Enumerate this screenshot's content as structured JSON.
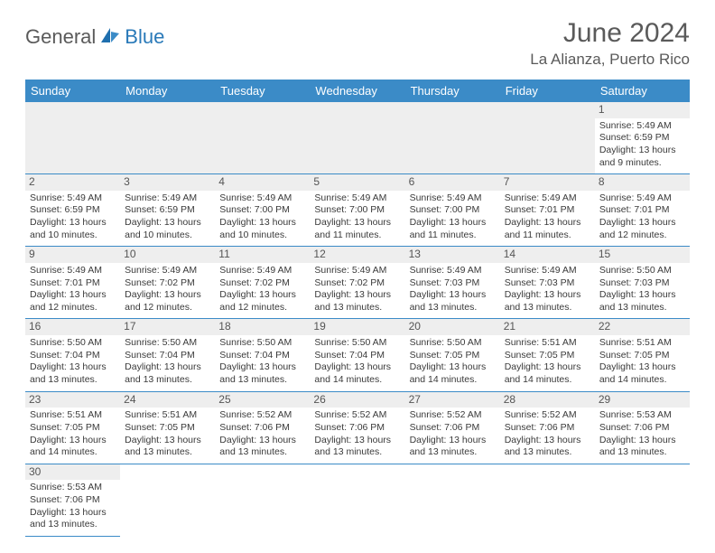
{
  "brand": {
    "part1": "General",
    "part2": "Blue"
  },
  "header": {
    "title": "June 2024",
    "location": "La Alianza, Puerto Rico"
  },
  "colors": {
    "header_bg": "#3b8bc7",
    "header_fg": "#ffffff",
    "daynum_bg": "#eeeeee",
    "rule": "#3b8bc7",
    "logo_gray": "#5a5a5a",
    "logo_blue": "#2a7ab9"
  },
  "daysOfWeek": [
    "Sunday",
    "Monday",
    "Tuesday",
    "Wednesday",
    "Thursday",
    "Friday",
    "Saturday"
  ],
  "weeks": [
    [
      null,
      null,
      null,
      null,
      null,
      null,
      {
        "n": "1",
        "sr": "5:49 AM",
        "ss": "6:59 PM",
        "dl": "13 hours and 9 minutes."
      }
    ],
    [
      {
        "n": "2",
        "sr": "5:49 AM",
        "ss": "6:59 PM",
        "dl": "13 hours and 10 minutes."
      },
      {
        "n": "3",
        "sr": "5:49 AM",
        "ss": "6:59 PM",
        "dl": "13 hours and 10 minutes."
      },
      {
        "n": "4",
        "sr": "5:49 AM",
        "ss": "7:00 PM",
        "dl": "13 hours and 10 minutes."
      },
      {
        "n": "5",
        "sr": "5:49 AM",
        "ss": "7:00 PM",
        "dl": "13 hours and 11 minutes."
      },
      {
        "n": "6",
        "sr": "5:49 AM",
        "ss": "7:00 PM",
        "dl": "13 hours and 11 minutes."
      },
      {
        "n": "7",
        "sr": "5:49 AM",
        "ss": "7:01 PM",
        "dl": "13 hours and 11 minutes."
      },
      {
        "n": "8",
        "sr": "5:49 AM",
        "ss": "7:01 PM",
        "dl": "13 hours and 12 minutes."
      }
    ],
    [
      {
        "n": "9",
        "sr": "5:49 AM",
        "ss": "7:01 PM",
        "dl": "13 hours and 12 minutes."
      },
      {
        "n": "10",
        "sr": "5:49 AM",
        "ss": "7:02 PM",
        "dl": "13 hours and 12 minutes."
      },
      {
        "n": "11",
        "sr": "5:49 AM",
        "ss": "7:02 PM",
        "dl": "13 hours and 12 minutes."
      },
      {
        "n": "12",
        "sr": "5:49 AM",
        "ss": "7:02 PM",
        "dl": "13 hours and 13 minutes."
      },
      {
        "n": "13",
        "sr": "5:49 AM",
        "ss": "7:03 PM",
        "dl": "13 hours and 13 minutes."
      },
      {
        "n": "14",
        "sr": "5:49 AM",
        "ss": "7:03 PM",
        "dl": "13 hours and 13 minutes."
      },
      {
        "n": "15",
        "sr": "5:50 AM",
        "ss": "7:03 PM",
        "dl": "13 hours and 13 minutes."
      }
    ],
    [
      {
        "n": "16",
        "sr": "5:50 AM",
        "ss": "7:04 PM",
        "dl": "13 hours and 13 minutes."
      },
      {
        "n": "17",
        "sr": "5:50 AM",
        "ss": "7:04 PM",
        "dl": "13 hours and 13 minutes."
      },
      {
        "n": "18",
        "sr": "5:50 AM",
        "ss": "7:04 PM",
        "dl": "13 hours and 13 minutes."
      },
      {
        "n": "19",
        "sr": "5:50 AM",
        "ss": "7:04 PM",
        "dl": "13 hours and 14 minutes."
      },
      {
        "n": "20",
        "sr": "5:50 AM",
        "ss": "7:05 PM",
        "dl": "13 hours and 14 minutes."
      },
      {
        "n": "21",
        "sr": "5:51 AM",
        "ss": "7:05 PM",
        "dl": "13 hours and 14 minutes."
      },
      {
        "n": "22",
        "sr": "5:51 AM",
        "ss": "7:05 PM",
        "dl": "13 hours and 14 minutes."
      }
    ],
    [
      {
        "n": "23",
        "sr": "5:51 AM",
        "ss": "7:05 PM",
        "dl": "13 hours and 14 minutes."
      },
      {
        "n": "24",
        "sr": "5:51 AM",
        "ss": "7:05 PM",
        "dl": "13 hours and 13 minutes."
      },
      {
        "n": "25",
        "sr": "5:52 AM",
        "ss": "7:06 PM",
        "dl": "13 hours and 13 minutes."
      },
      {
        "n": "26",
        "sr": "5:52 AM",
        "ss": "7:06 PM",
        "dl": "13 hours and 13 minutes."
      },
      {
        "n": "27",
        "sr": "5:52 AM",
        "ss": "7:06 PM",
        "dl": "13 hours and 13 minutes."
      },
      {
        "n": "28",
        "sr": "5:52 AM",
        "ss": "7:06 PM",
        "dl": "13 hours and 13 minutes."
      },
      {
        "n": "29",
        "sr": "5:53 AM",
        "ss": "7:06 PM",
        "dl": "13 hours and 13 minutes."
      }
    ],
    [
      {
        "n": "30",
        "sr": "5:53 AM",
        "ss": "7:06 PM",
        "dl": "13 hours and 13 minutes."
      },
      null,
      null,
      null,
      null,
      null,
      null
    ]
  ],
  "labels": {
    "sunrise": "Sunrise: ",
    "sunset": "Sunset: ",
    "daylight": "Daylight: "
  }
}
